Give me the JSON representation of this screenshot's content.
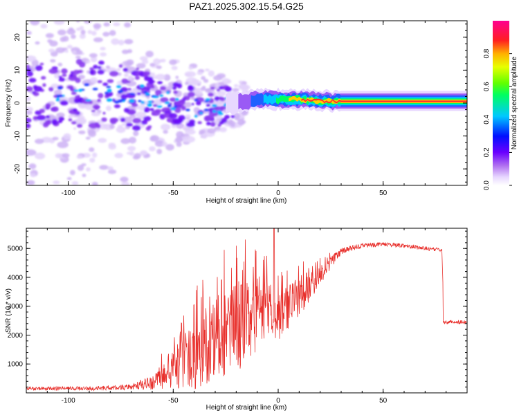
{
  "title": "PAZ1.2025.302.15.54.G25",
  "chart_data": [
    {
      "type": "heatmap",
      "xlabel": "Height of straight line (km)",
      "ylabel": "Frequency (Hz)",
      "xlim": [
        -120,
        90
      ],
      "ylim": [
        -25,
        25
      ],
      "xticks": [
        -100,
        -50,
        0,
        50
      ],
      "xtick_labels": [
        "-100",
        "-50",
        "0",
        "50"
      ],
      "yticks": [
        -20,
        -10,
        0,
        10,
        20
      ],
      "ytick_labels": [
        "-20",
        "-10",
        "0",
        "10",
        "20"
      ],
      "colorbar": {
        "label": "Normalized spectral amplitude",
        "range": [
          0,
          1
        ],
        "ticks": [
          0.0,
          0.2,
          0.4,
          0.6,
          0.8
        ],
        "tick_labels": [
          "0.0",
          "0.2",
          "0.4",
          "0.6",
          "0.8"
        ],
        "colors": [
          "#ffffff",
          "#d8c8f8",
          "#8a2be2",
          "#2020ff",
          "#00c8ff",
          "#00ff60",
          "#a0ff00",
          "#ffd000",
          "#ff3030",
          "#ff0080"
        ]
      },
      "ridge": {
        "description_points_x": [
          -120,
          -100,
          -80,
          -60,
          -50,
          -40,
          -30,
          -20,
          -10,
          0,
          10,
          20,
          30,
          40,
          50,
          60,
          70,
          80,
          90
        ],
        "center_freq_hz": [
          3,
          3,
          3,
          2,
          0,
          -1,
          -1,
          0,
          1,
          1,
          1,
          0.5,
          0.5,
          0.5,
          0.5,
          0.5,
          0.5,
          0.5,
          0.5
        ]
      }
    },
    {
      "type": "line",
      "xlabel": "Height of straight line (km)",
      "ylabel": "SNR (10 * v/v)",
      "xlim": [
        -120,
        90
      ],
      "ylim": [
        0,
        5700
      ],
      "xticks": [
        -100,
        -50,
        0,
        50
      ],
      "xtick_labels": [
        "-100",
        "-50",
        "0",
        "50"
      ],
      "yticks": [
        1000,
        2000,
        3000,
        4000,
        5000
      ],
      "ytick_labels": [
        "1000",
        "2000",
        "3000",
        "4000",
        "5000"
      ],
      "series": [
        {
          "name": "SNR",
          "color": "#e8302c",
          "envelope_x": [
            -120,
            -90,
            -70,
            -60,
            -50,
            -40,
            -30,
            -20,
            -10,
            -5,
            0,
            10,
            20,
            25,
            30,
            40,
            50,
            60,
            70,
            78,
            79,
            90
          ],
          "envelope_mean": [
            150,
            150,
            200,
            350,
            800,
            1300,
            1800,
            2300,
            2700,
            3000,
            2600,
            3300,
            4100,
            4500,
            4900,
            5100,
            5150,
            5100,
            5000,
            4950,
            2450,
            2400
          ],
          "envelope_amp": [
            60,
            70,
            100,
            250,
            700,
            1200,
            1500,
            1600,
            1300,
            1000,
            800,
            700,
            350,
            250,
            120,
            90,
            70,
            70,
            70,
            60,
            60,
            60
          ]
        }
      ]
    }
  ]
}
